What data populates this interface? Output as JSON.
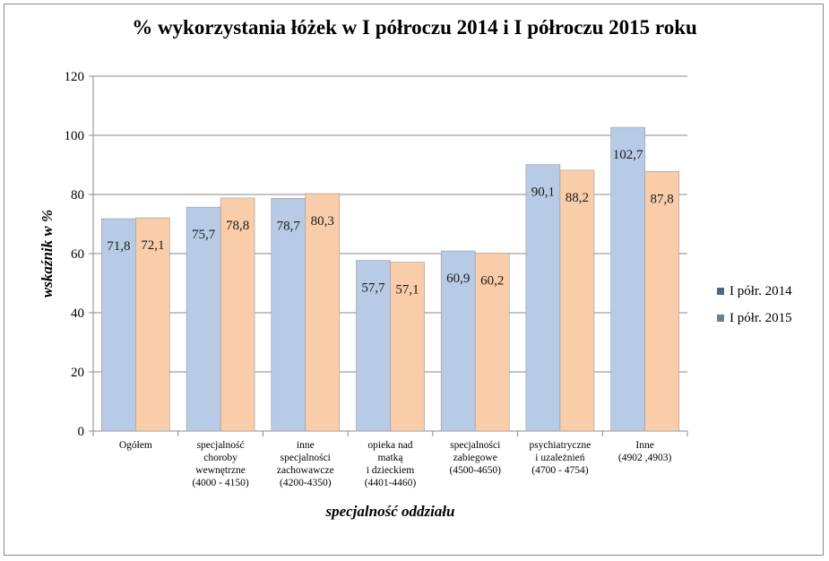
{
  "chart_data": {
    "type": "bar",
    "title": "% wykorzystania łóżek w I półroczu 2014 i  I półroczu 2015 roku",
    "xlabel": "specjalność oddziału",
    "ylabel": "wskaźnik w %",
    "ylim": [
      0,
      120
    ],
    "yticks": [
      0,
      20,
      40,
      60,
      80,
      100,
      120
    ],
    "grid": true,
    "legend_position": "right",
    "categories": [
      [
        "Ogółem"
      ],
      [
        "specjalność",
        "choroby",
        "wewnętrzne",
        "(4000 - 4150)"
      ],
      [
        "inne",
        "specjalności",
        "zachowawcze",
        "(4200-4350)"
      ],
      [
        "opieka nad",
        "matką",
        "i dzieckiem",
        "(4401-4460)"
      ],
      [
        "specjalności",
        "zabiegowe",
        "(4500-4650)"
      ],
      [
        "psychiatryczne",
        "i uzależnień",
        "(4700 - 4754)"
      ],
      [
        "Inne",
        "(4902 ,4903)"
      ]
    ],
    "series": [
      {
        "name": "I półr. 2014",
        "color": "#b7cbe6",
        "legend_color": "#4f6685",
        "values": [
          71.8,
          75.7,
          78.7,
          57.7,
          60.9,
          90.1,
          102.7
        ],
        "labels": [
          "71,8",
          "75,7",
          "78,7",
          "57,7",
          "60,9",
          "90,1",
          "102,7"
        ]
      },
      {
        "name": "I półr. 2015",
        "color": "#f9cda9",
        "legend_color": "#6f7f8f",
        "values": [
          72.1,
          78.8,
          80.3,
          57.1,
          60.2,
          88.2,
          87.8
        ],
        "labels": [
          "72,1",
          "78,8",
          "80,3",
          "57,1",
          "60,2",
          "88,2",
          "87,8"
        ]
      }
    ]
  }
}
